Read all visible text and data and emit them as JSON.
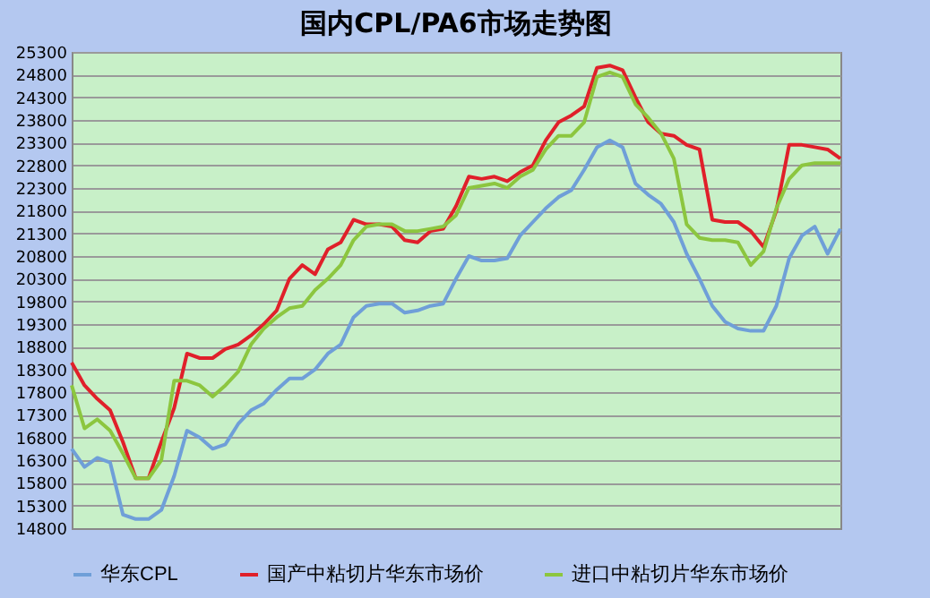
{
  "chart_data": {
    "type": "line",
    "title": "国内CPL/PA6市场走势图",
    "categories": [
      null,
      null,
      null,
      null,
      null,
      null,
      null,
      null,
      null,
      null,
      null,
      null,
      null,
      null,
      null,
      null,
      null,
      null,
      null,
      null,
      null,
      null,
      null,
      null,
      null,
      null,
      null,
      null,
      null,
      null,
      null,
      null,
      null,
      null,
      null,
      null,
      null,
      null,
      null,
      null,
      null,
      null,
      null,
      null,
      null,
      null,
      null,
      null,
      null,
      null,
      null,
      null,
      null,
      null,
      null,
      null,
      null,
      null,
      null,
      null,
      null
    ],
    "series": [
      {
        "name": "华东CPL",
        "color": "#6f9fd8",
        "values": [
          16550,
          16150,
          16350,
          16250,
          15100,
          15000,
          15000,
          15200,
          15950,
          16950,
          16800,
          16550,
          16650,
          17100,
          17400,
          17550,
          17850,
          18100,
          18100,
          18300,
          18650,
          18850,
          19450,
          19700,
          19750,
          19750,
          19550,
          19600,
          19700,
          19750,
          20300,
          20800,
          20700,
          20700,
          20750,
          21250,
          21550,
          21850,
          22100,
          22250,
          22700,
          23200,
          23350,
          23200,
          22400,
          22150,
          21950,
          21550,
          20850,
          20300,
          19700,
          19350,
          19200,
          19150,
          19150,
          19700,
          20750,
          21250,
          21450,
          20850,
          21400
        ]
      },
      {
        "name": "国产中粘切片华东市场价",
        "color": "#e0202a",
        "values": [
          18450,
          17950,
          17650,
          17400,
          16700,
          15900,
          15900,
          16700,
          17450,
          18650,
          18550,
          18550,
          18750,
          18850,
          19050,
          19300,
          19600,
          20300,
          20600,
          20400,
          20950,
          21100,
          21600,
          21500,
          21500,
          21450,
          21150,
          21100,
          21350,
          21400,
          21900,
          22550,
          22500,
          22550,
          22450,
          22650,
          22800,
          23350,
          23750,
          23900,
          24100,
          24950,
          25000,
          24900,
          24300,
          23750,
          23500,
          23450,
          23250,
          23150,
          21600,
          21550,
          21550,
          21350,
          21000,
          21800,
          23250,
          23250,
          23200,
          23150,
          22950
        ]
      },
      {
        "name": "进口中粘切片华东市场价",
        "color": "#8cc63f",
        "values": [
          17950,
          17000,
          17200,
          16950,
          16450,
          15900,
          15900,
          16300,
          18050,
          18050,
          17950,
          17700,
          17950,
          18250,
          18850,
          19200,
          19450,
          19650,
          19700,
          20050,
          20300,
          20600,
          21150,
          21450,
          21500,
          21500,
          21350,
          21350,
          21400,
          21450,
          21700,
          22300,
          22350,
          22400,
          22300,
          22550,
          22700,
          23150,
          23450,
          23450,
          23750,
          24750,
          24850,
          24750,
          24150,
          23850,
          23500,
          22950,
          21500,
          21200,
          21150,
          21150,
          21100,
          20600,
          20900,
          21850,
          22500,
          22800,
          22850,
          22850,
          22850
        ]
      }
    ],
    "ylim": [
      14800,
      25300
    ],
    "yticks": [
      14800,
      15300,
      15800,
      16300,
      16800,
      17300,
      17800,
      18300,
      18800,
      19300,
      19800,
      20300,
      20800,
      21300,
      21800,
      22300,
      22800,
      23300,
      23800,
      24300,
      24800,
      25300
    ],
    "grid": "y",
    "legend": "bottom",
    "marker": "none",
    "line_style": "solid"
  }
}
